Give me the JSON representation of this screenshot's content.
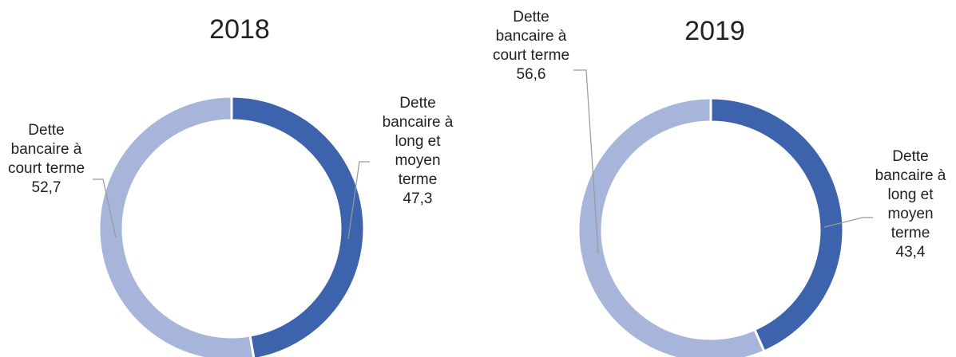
{
  "chart_data": [
    {
      "type": "donut",
      "title": "2018",
      "categories": [
        "Dette bancaire à long et moyen terme",
        "Dette bancaire à court terme"
      ],
      "values": [
        47.3,
        52.7
      ],
      "value_labels": [
        "47,3",
        "52,7"
      ],
      "colors": [
        "#3d63ad",
        "#a7b5da"
      ]
    },
    {
      "type": "donut",
      "title": "2019",
      "categories": [
        "Dette bancaire à long et moyen terme",
        "Dette bancaire à court terme"
      ],
      "values": [
        43.4,
        56.6
      ],
      "value_labels": [
        "43,4",
        "56,6"
      ],
      "colors": [
        "#3d63ad",
        "#a7b5da"
      ]
    }
  ]
}
